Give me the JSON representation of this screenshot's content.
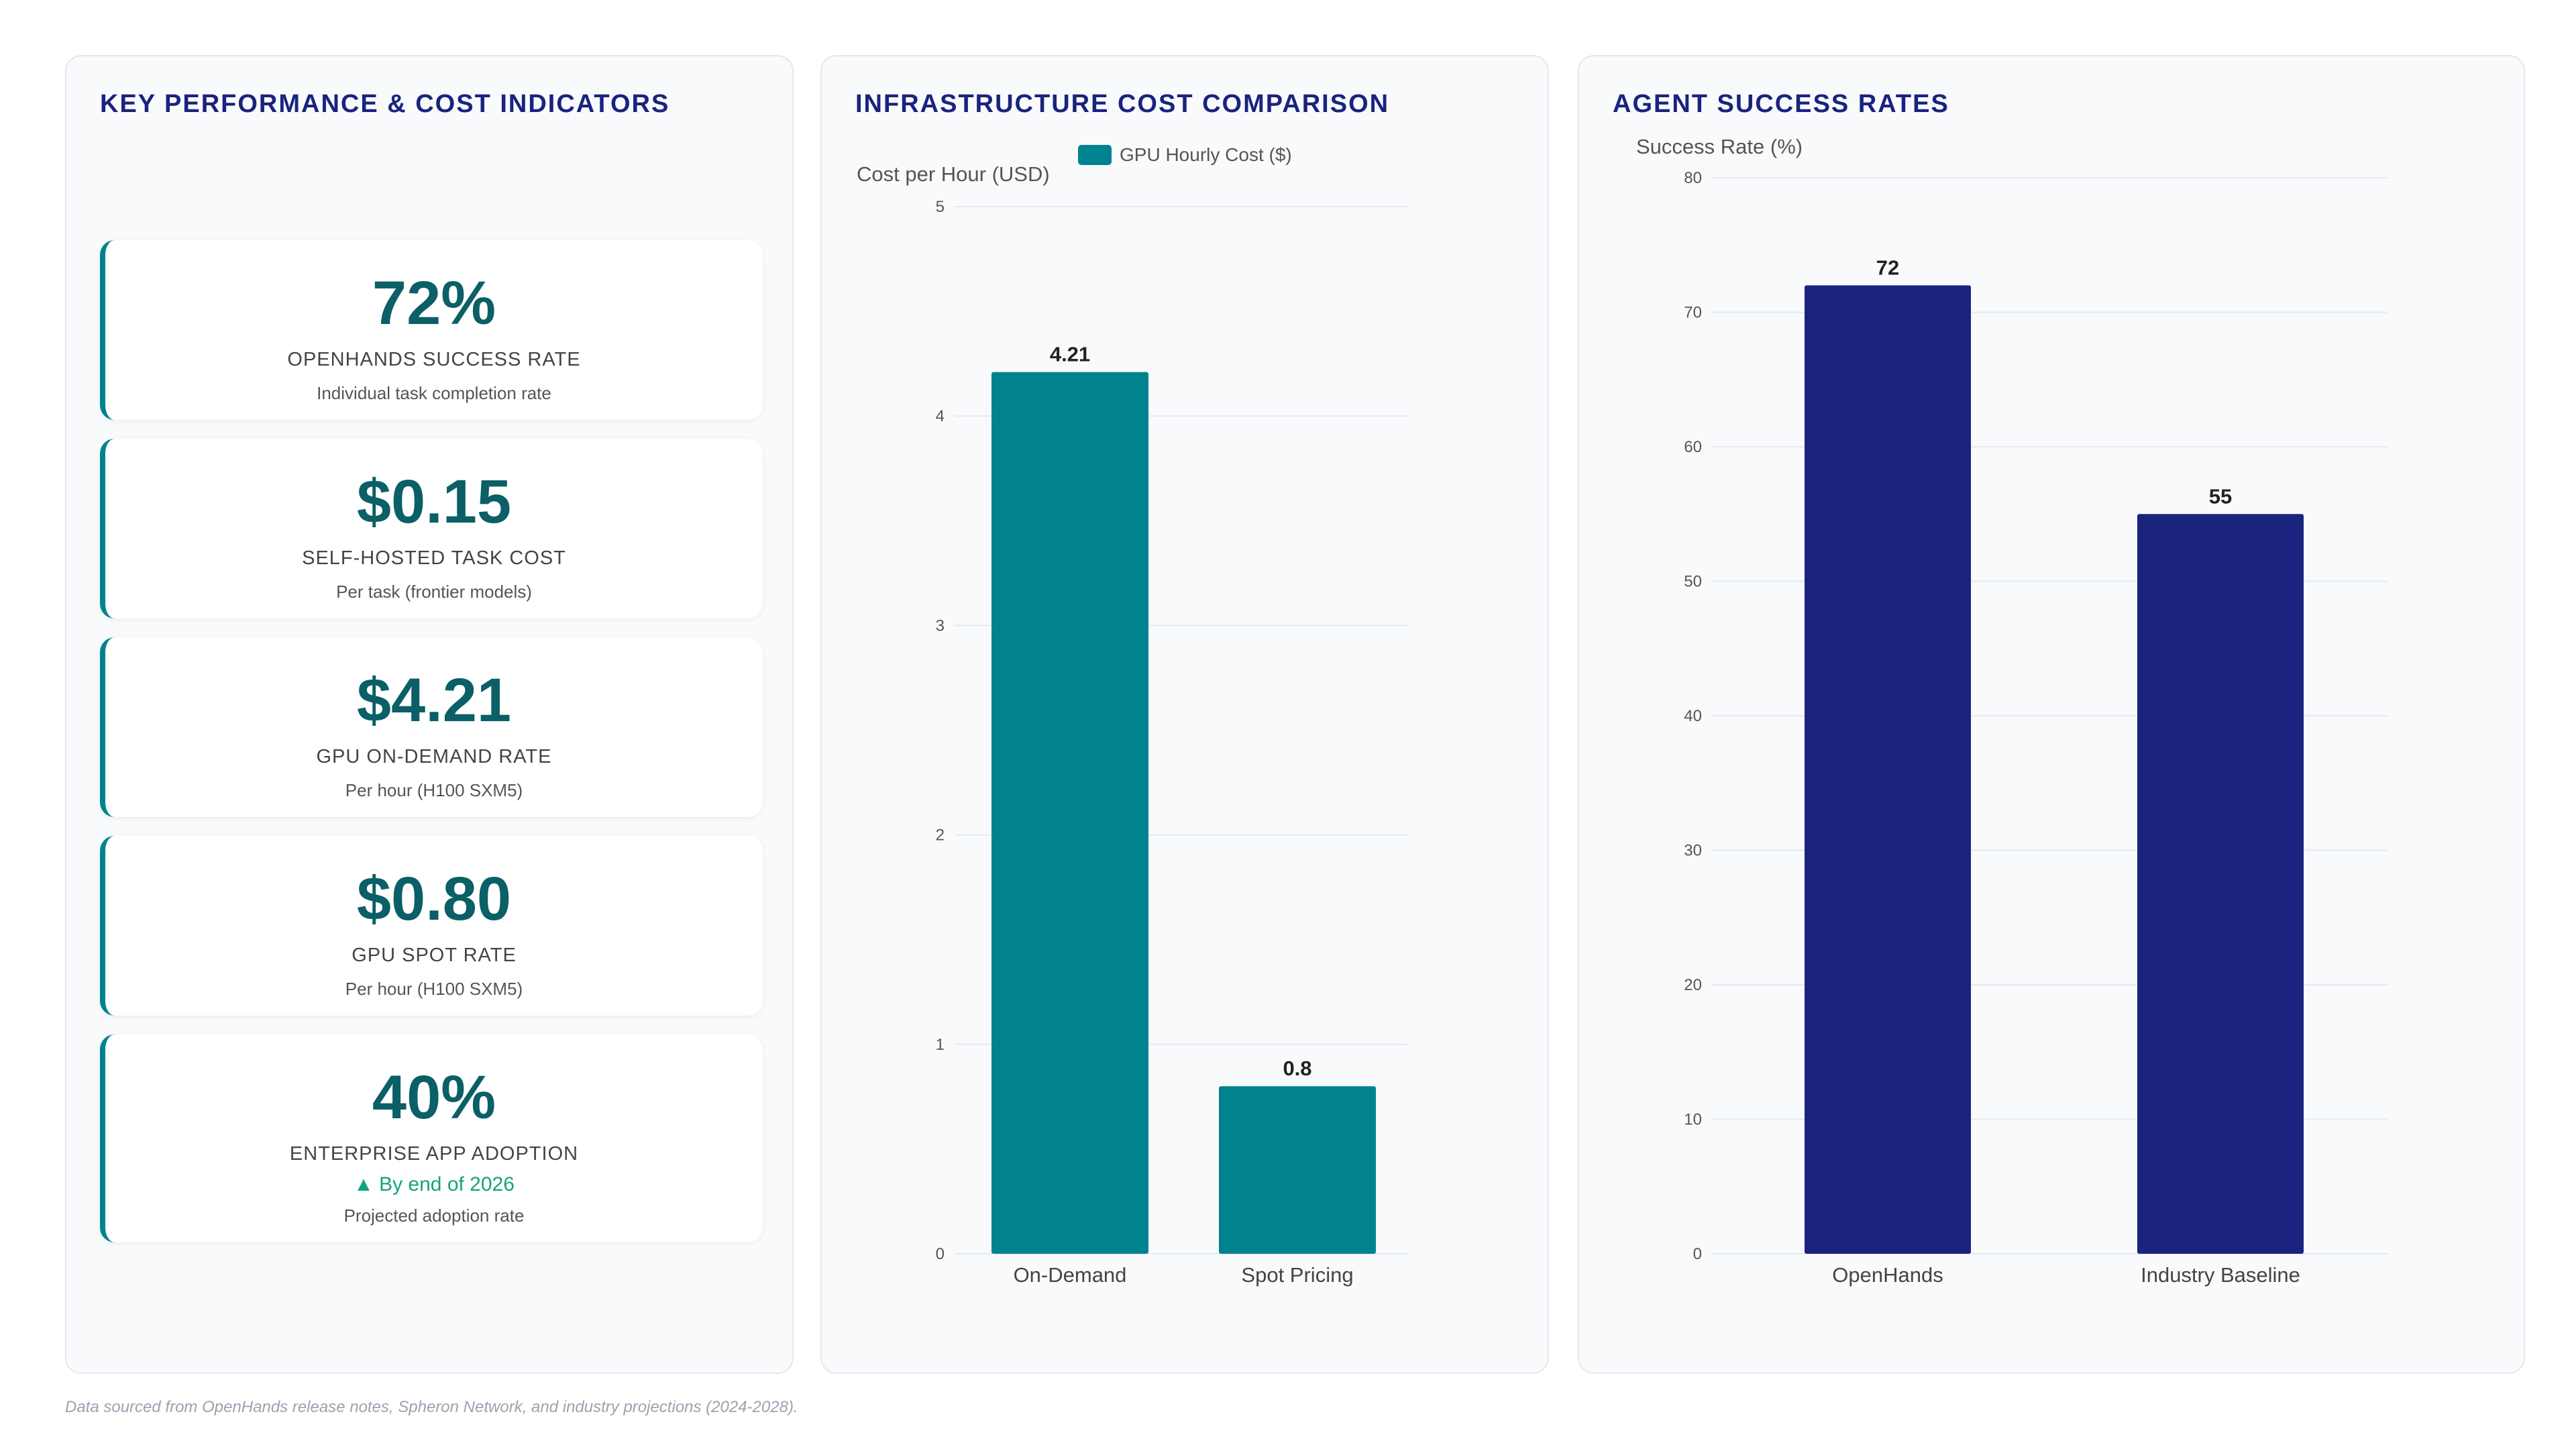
{
  "kpi_panel": {
    "title": "KEY PERFORMANCE & COST INDICATORS",
    "cards": [
      {
        "value": "72%",
        "label": "OPENHANDS SUCCESS RATE",
        "sub": "Individual task completion rate"
      },
      {
        "value": "$0.15",
        "label": "SELF-HOSTED TASK COST",
        "sub": "Per task (frontier models)"
      },
      {
        "value": "$4.21",
        "label": "GPU ON-DEMAND RATE",
        "sub": "Per hour (H100 SXM5)"
      },
      {
        "value": "$0.80",
        "label": "GPU SPOT RATE",
        "sub": "Per hour (H100 SXM5)"
      },
      {
        "value": "40%",
        "label": "ENTERPRISE APP ADOPTION",
        "trend": "▲ By end of 2026",
        "sub": "Projected adoption rate"
      }
    ]
  },
  "infra_panel": {
    "title": "INFRASTRUCTURE COST COMPARISON"
  },
  "agent_panel": {
    "title": "AGENT SUCCESS RATES"
  },
  "chart_data": [
    {
      "type": "bar",
      "title": "INFRASTRUCTURE COST COMPARISON",
      "categories": [
        "On-Demand",
        "Spot Pricing"
      ],
      "series": [
        {
          "name": "GPU Hourly Cost ($)",
          "values": [
            4.21,
            0.8
          ]
        }
      ],
      "data_labels": [
        "4.21",
        "0.8"
      ],
      "ylabel": "Cost per Hour (USD)",
      "xlabel": "",
      "ylim": [
        0,
        5
      ],
      "yticks": [
        "0",
        "1",
        "2",
        "3",
        "4",
        "5"
      ],
      "grid": true,
      "legend": "top",
      "color": "#00838f"
    },
    {
      "type": "bar",
      "title": "AGENT SUCCESS RATES",
      "categories": [
        "OpenHands",
        "Industry Baseline"
      ],
      "series": [
        {
          "values": [
            72,
            55
          ]
        }
      ],
      "data_labels": [
        "72",
        "55"
      ],
      "ylabel": "Success Rate (%)",
      "xlabel": "",
      "ylim": [
        0,
        80
      ],
      "yticks": [
        "0",
        "10",
        "20",
        "30",
        "40",
        "50",
        "60",
        "70",
        "80"
      ],
      "grid": true,
      "legend": "none",
      "color": "#1a237e"
    }
  ],
  "footnote": "Data sourced from OpenHands release notes, Spheron Network, and industry projections (2024-2028)."
}
